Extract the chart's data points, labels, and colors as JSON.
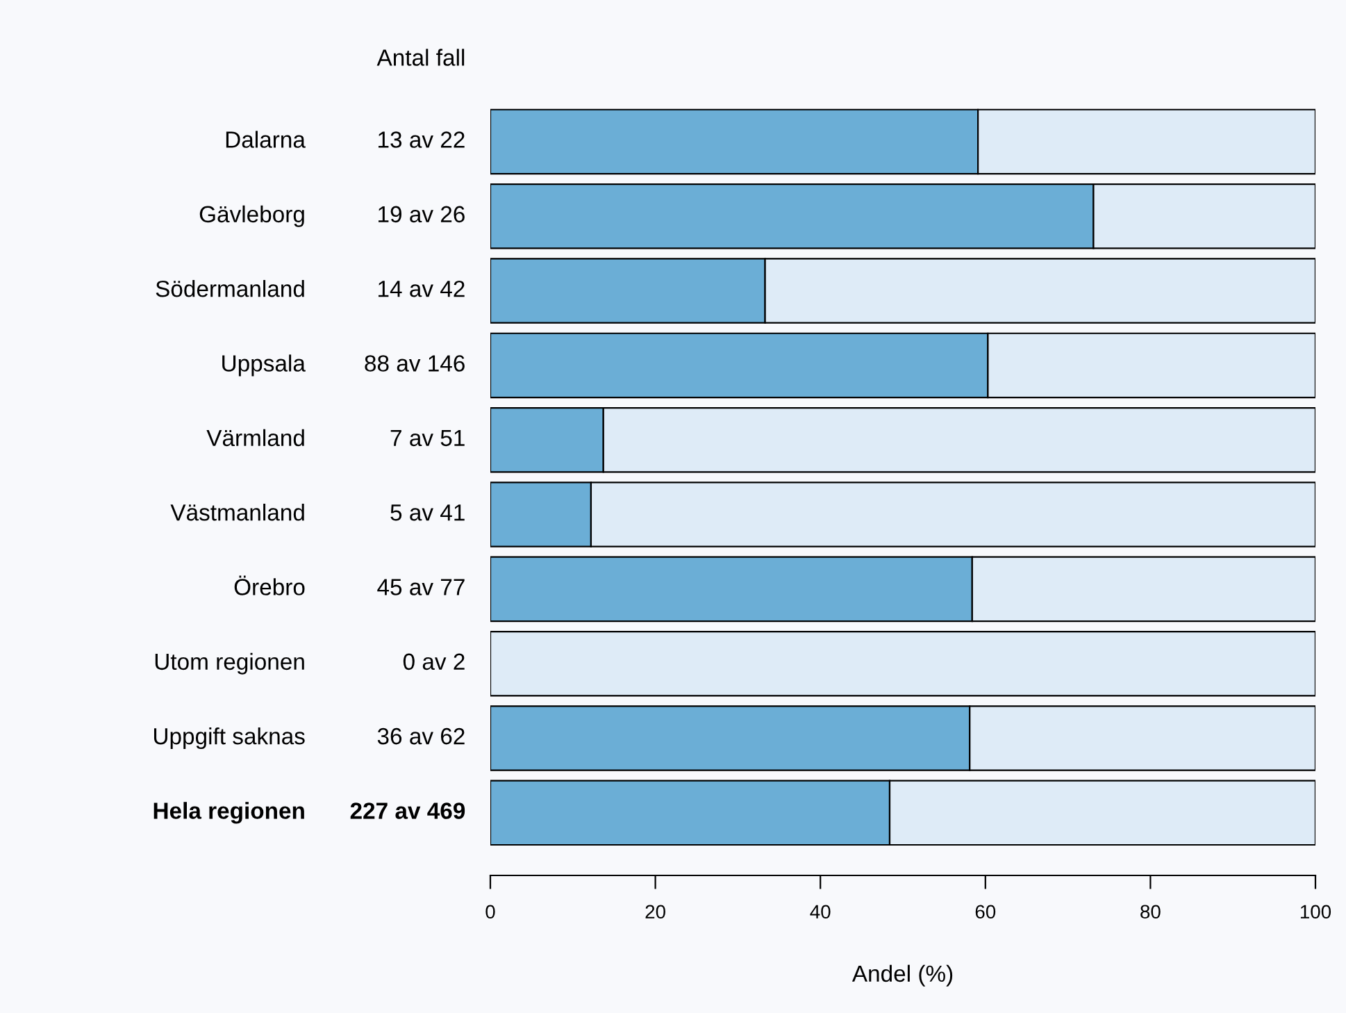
{
  "chart_data": {
    "type": "bar",
    "orientation": "horizontal",
    "stacked": true,
    "categories": [
      "Dalarna",
      "Gävleborg",
      "Södermanland",
      "Uppsala",
      "Värmland",
      "Västmanland",
      "Örebro",
      "Utom regionen",
      "Uppgift saknas",
      "Hela regionen"
    ],
    "series": [
      {
        "color": "#6baed6",
        "values": [
          59.1,
          73.1,
          33.3,
          60.3,
          13.7,
          12.2,
          58.4,
          0,
          58.1,
          48.4
        ]
      },
      {
        "color": "#deebf7",
        "values": [
          40.9,
          26.9,
          66.7,
          39.7,
          86.3,
          87.8,
          41.6,
          100,
          41.9,
          51.6
        ]
      }
    ],
    "xlim": [
      0,
      100
    ],
    "xticks": [
      0,
      20,
      40,
      60,
      80,
      100
    ],
    "xlabel": "Andel (%)",
    "annotations": [
      "Antal fall",
      "13 av 22",
      "19 av 26",
      "14 av 42",
      "88 av 146",
      "7 av 51",
      "5 av 41",
      "45 av 77",
      "0 av 2",
      "36 av 62",
      "227 av 469"
    ],
    "grid": false,
    "legend": false
  }
}
